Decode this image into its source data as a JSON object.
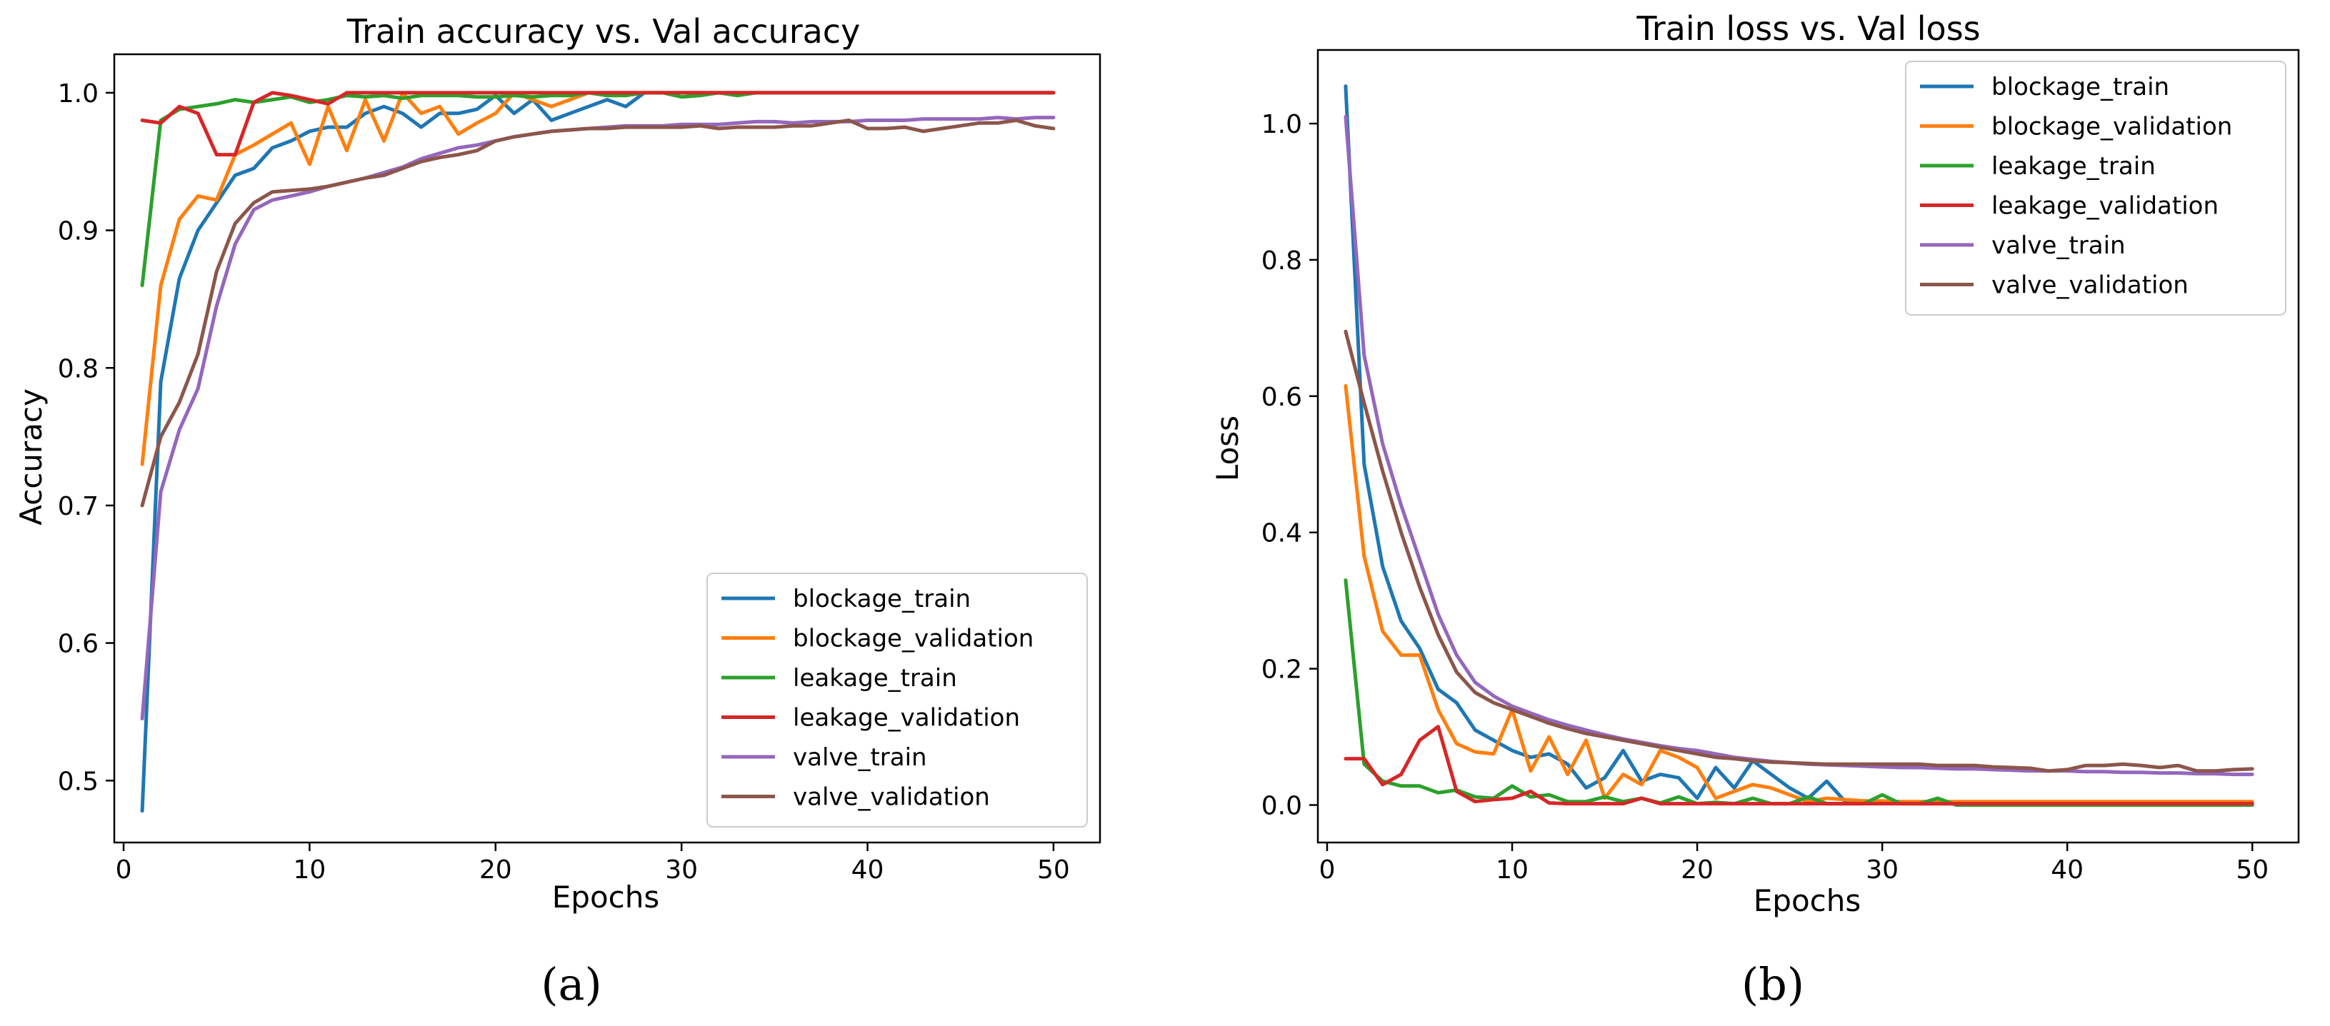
{
  "chart_data": [
    {
      "type": "line",
      "panel_label": "(a)",
      "title": "Train accuracy vs. Val accuracy",
      "xlabel": "Epochs",
      "ylabel": "Accuracy",
      "xlim": [
        -0.5,
        52.5
      ],
      "ylim": [
        0.455,
        1.028
      ],
      "xticks": [
        0,
        10,
        20,
        30,
        40,
        50
      ],
      "yticks": [
        0.5,
        0.6,
        0.7,
        0.8,
        0.9,
        1.0
      ],
      "ytick_labels": [
        "0.5",
        "0.6",
        "0.7",
        "0.8",
        "0.9",
        "1.0"
      ],
      "legend_position": "lower-right",
      "x": [
        1,
        2,
        3,
        4,
        5,
        6,
        7,
        8,
        9,
        10,
        11,
        12,
        13,
        14,
        15,
        16,
        17,
        18,
        19,
        20,
        21,
        22,
        23,
        24,
        25,
        26,
        27,
        28,
        29,
        30,
        31,
        32,
        33,
        34,
        35,
        36,
        37,
        38,
        39,
        40,
        41,
        42,
        43,
        44,
        45,
        46,
        47,
        48,
        49,
        50
      ],
      "series": [
        {
          "name": "blockage_train",
          "color": "#1f77b4",
          "values": [
            0.478,
            0.79,
            0.865,
            0.9,
            0.92,
            0.94,
            0.945,
            0.96,
            0.965,
            0.972,
            0.975,
            0.975,
            0.985,
            0.99,
            0.985,
            0.975,
            0.985,
            0.985,
            0.988,
            0.998,
            0.985,
            0.995,
            0.98,
            0.985,
            0.99,
            0.995,
            0.99,
            1.0,
            1.0,
            1.0,
            1.0,
            1.0,
            1.0,
            1.0,
            1.0,
            1.0,
            1.0,
            1.0,
            1.0,
            1.0,
            1.0,
            1.0,
            1.0,
            1.0,
            1.0,
            1.0,
            1.0,
            1.0,
            1.0,
            1.0
          ]
        },
        {
          "name": "blockage_validation",
          "color": "#ff7f0e",
          "values": [
            0.73,
            0.86,
            0.908,
            0.925,
            0.922,
            0.955,
            0.962,
            0.97,
            0.978,
            0.948,
            0.99,
            0.958,
            0.995,
            0.965,
            1.0,
            0.985,
            0.99,
            0.97,
            0.978,
            0.985,
            1.0,
            0.995,
            0.99,
            0.995,
            1.0,
            1.0,
            1.0,
            1.0,
            1.0,
            1.0,
            1.0,
            1.0,
            1.0,
            1.0,
            1.0,
            1.0,
            1.0,
            1.0,
            1.0,
            1.0,
            1.0,
            1.0,
            1.0,
            1.0,
            1.0,
            1.0,
            1.0,
            1.0,
            1.0,
            1.0
          ]
        },
        {
          "name": "leakage_train",
          "color": "#2ca02c",
          "values": [
            0.86,
            0.98,
            0.988,
            0.99,
            0.992,
            0.995,
            0.993,
            0.995,
            0.997,
            0.993,
            0.995,
            0.998,
            0.997,
            0.998,
            0.996,
            0.998,
            0.998,
            0.998,
            0.997,
            0.997,
            0.998,
            0.997,
            0.998,
            0.998,
            1.0,
            0.998,
            0.998,
            1.0,
            1.0,
            0.997,
            0.998,
            1.0,
            0.998,
            1.0,
            1.0,
            1.0,
            1.0,
            1.0,
            1.0,
            1.0,
            1.0,
            1.0,
            1.0,
            1.0,
            1.0,
            1.0,
            1.0,
            1.0,
            1.0,
            1.0
          ]
        },
        {
          "name": "leakage_validation",
          "color": "#d62728",
          "values": [
            0.98,
            0.978,
            0.99,
            0.985,
            0.955,
            0.955,
            0.993,
            1.0,
            0.998,
            0.995,
            0.992,
            1.0,
            1.0,
            1.0,
            1.0,
            1.0,
            1.0,
            1.0,
            1.0,
            1.0,
            1.0,
            1.0,
            1.0,
            1.0,
            1.0,
            1.0,
            1.0,
            1.0,
            1.0,
            1.0,
            1.0,
            1.0,
            1.0,
            1.0,
            1.0,
            1.0,
            1.0,
            1.0,
            1.0,
            1.0,
            1.0,
            1.0,
            1.0,
            1.0,
            1.0,
            1.0,
            1.0,
            1.0,
            1.0,
            1.0
          ]
        },
        {
          "name": "valve_train",
          "color": "#9467bd",
          "values": [
            0.545,
            0.71,
            0.755,
            0.785,
            0.845,
            0.89,
            0.915,
            0.922,
            0.925,
            0.928,
            0.932,
            0.935,
            0.938,
            0.942,
            0.946,
            0.952,
            0.956,
            0.96,
            0.962,
            0.965,
            0.968,
            0.97,
            0.972,
            0.973,
            0.974,
            0.975,
            0.976,
            0.976,
            0.976,
            0.977,
            0.977,
            0.977,
            0.978,
            0.979,
            0.979,
            0.978,
            0.979,
            0.979,
            0.979,
            0.98,
            0.98,
            0.98,
            0.981,
            0.981,
            0.981,
            0.981,
            0.982,
            0.981,
            0.982,
            0.982
          ]
        },
        {
          "name": "valve_validation",
          "color": "#8c564b",
          "values": [
            0.7,
            0.75,
            0.775,
            0.81,
            0.87,
            0.905,
            0.92,
            0.928,
            0.929,
            0.93,
            0.932,
            0.935,
            0.938,
            0.94,
            0.945,
            0.95,
            0.953,
            0.955,
            0.958,
            0.965,
            0.968,
            0.97,
            0.972,
            0.973,
            0.974,
            0.974,
            0.975,
            0.975,
            0.975,
            0.975,
            0.976,
            0.974,
            0.975,
            0.975,
            0.975,
            0.976,
            0.976,
            0.978,
            0.98,
            0.974,
            0.974,
            0.975,
            0.972,
            0.974,
            0.976,
            0.978,
            0.978,
            0.98,
            0.976,
            0.974
          ]
        }
      ]
    },
    {
      "type": "line",
      "panel_label": "(b)",
      "title": "Train loss vs. Val loss",
      "xlabel": "Epochs",
      "ylabel": "Loss",
      "xlim": [
        -0.5,
        52.5
      ],
      "ylim": [
        -0.055,
        1.108
      ],
      "xticks": [
        0,
        10,
        20,
        30,
        40,
        50
      ],
      "yticks": [
        0.0,
        0.2,
        0.4,
        0.6,
        0.8,
        1.0
      ],
      "ytick_labels": [
        "0.0",
        "0.2",
        "0.4",
        "0.6",
        "0.8",
        "1.0"
      ],
      "legend_position": "upper-right",
      "x": [
        1,
        2,
        3,
        4,
        5,
        6,
        7,
        8,
        9,
        10,
        11,
        12,
        13,
        14,
        15,
        16,
        17,
        18,
        19,
        20,
        21,
        22,
        23,
        24,
        25,
        26,
        27,
        28,
        29,
        30,
        31,
        32,
        33,
        34,
        35,
        36,
        37,
        38,
        39,
        40,
        41,
        42,
        43,
        44,
        45,
        46,
        47,
        48,
        49,
        50
      ],
      "series": [
        {
          "name": "blockage_train",
          "color": "#1f77b4",
          "values": [
            1.055,
            0.5,
            0.35,
            0.27,
            0.23,
            0.17,
            0.15,
            0.11,
            0.095,
            0.08,
            0.07,
            0.075,
            0.06,
            0.025,
            0.04,
            0.08,
            0.035,
            0.045,
            0.04,
            0.01,
            0.055,
            0.025,
            0.065,
            0.045,
            0.025,
            0.01,
            0.035,
            0.005,
            0.005,
            0.003,
            0.003,
            0.002,
            0.002,
            0.002,
            0.002,
            0.002,
            0.002,
            0.002,
            0.002,
            0.002,
            0.002,
            0.002,
            0.002,
            0.002,
            0.002,
            0.002,
            0.002,
            0.002,
            0.002,
            0.002
          ]
        },
        {
          "name": "blockage_validation",
          "color": "#ff7f0e",
          "values": [
            0.615,
            0.365,
            0.255,
            0.22,
            0.22,
            0.14,
            0.09,
            0.078,
            0.075,
            0.14,
            0.05,
            0.1,
            0.045,
            0.095,
            0.01,
            0.045,
            0.03,
            0.08,
            0.07,
            0.055,
            0.01,
            0.02,
            0.03,
            0.025,
            0.015,
            0.005,
            0.01,
            0.008,
            0.006,
            0.006,
            0.005,
            0.005,
            0.005,
            0.005,
            0.005,
            0.005,
            0.005,
            0.005,
            0.005,
            0.005,
            0.005,
            0.005,
            0.005,
            0.005,
            0.005,
            0.005,
            0.005,
            0.005,
            0.005,
            0.005
          ]
        },
        {
          "name": "leakage_train",
          "color": "#2ca02c",
          "values": [
            0.33,
            0.06,
            0.035,
            0.028,
            0.028,
            0.018,
            0.022,
            0.012,
            0.01,
            0.028,
            0.012,
            0.015,
            0.005,
            0.005,
            0.012,
            0.005,
            0.01,
            0.003,
            0.012,
            0.002,
            0.004,
            0.002,
            0.01,
            0.002,
            0.002,
            0.012,
            0.002,
            0.002,
            0.002,
            0.015,
            0.002,
            0.002,
            0.01,
            0.0,
            0.0,
            0.0,
            0.0,
            0.0,
            0.0,
            0.0,
            0.0,
            0.0,
            0.0,
            0.0,
            0.0,
            0.0,
            0.0,
            0.0,
            0.0,
            0.0
          ]
        },
        {
          "name": "leakage_validation",
          "color": "#d62728",
          "values": [
            0.068,
            0.068,
            0.03,
            0.045,
            0.095,
            0.115,
            0.02,
            0.005,
            0.008,
            0.01,
            0.02,
            0.003,
            0.002,
            0.002,
            0.002,
            0.002,
            0.01,
            0.002,
            0.002,
            0.002,
            0.002,
            0.002,
            0.002,
            0.002,
            0.002,
            0.002,
            0.002,
            0.002,
            0.002,
            0.002,
            0.002,
            0.002,
            0.002,
            0.002,
            0.002,
            0.002,
            0.002,
            0.002,
            0.002,
            0.002,
            0.002,
            0.002,
            0.002,
            0.002,
            0.002,
            0.002,
            0.002,
            0.002,
            0.002,
            0.002
          ]
        },
        {
          "name": "valve_train",
          "color": "#9467bd",
          "values": [
            1.01,
            0.66,
            0.53,
            0.44,
            0.36,
            0.28,
            0.22,
            0.18,
            0.16,
            0.145,
            0.135,
            0.125,
            0.117,
            0.11,
            0.103,
            0.097,
            0.092,
            0.087,
            0.083,
            0.08,
            0.075,
            0.07,
            0.067,
            0.064,
            0.062,
            0.06,
            0.059,
            0.058,
            0.057,
            0.056,
            0.055,
            0.055,
            0.054,
            0.053,
            0.053,
            0.052,
            0.051,
            0.05,
            0.05,
            0.05,
            0.049,
            0.049,
            0.048,
            0.048,
            0.047,
            0.047,
            0.046,
            0.046,
            0.045,
            0.045
          ]
        },
        {
          "name": "valve_validation",
          "color": "#8c564b",
          "values": [
            0.695,
            0.59,
            0.49,
            0.4,
            0.32,
            0.25,
            0.195,
            0.165,
            0.15,
            0.14,
            0.13,
            0.12,
            0.112,
            0.105,
            0.1,
            0.095,
            0.09,
            0.085,
            0.08,
            0.075,
            0.07,
            0.068,
            0.065,
            0.063,
            0.062,
            0.061,
            0.06,
            0.06,
            0.06,
            0.06,
            0.06,
            0.06,
            0.058,
            0.058,
            0.058,
            0.056,
            0.055,
            0.054,
            0.05,
            0.052,
            0.058,
            0.058,
            0.06,
            0.058,
            0.055,
            0.058,
            0.05,
            0.05,
            0.052,
            0.053
          ]
        }
      ]
    }
  ]
}
